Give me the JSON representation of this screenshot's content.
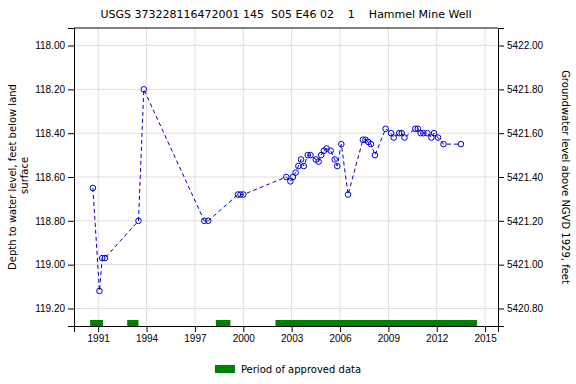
{
  "chart_data": {
    "type": "line",
    "title": "USGS 373228116472001 145  S05 E46 02    1    Hammel Mine Well",
    "ylabel": "Depth to water level, feet below land\n surface",
    "y2label": "Groundwater level above NGVD 1929, feet",
    "xlim": [
      1989.5,
      2015.8
    ],
    "xticks": [
      1991,
      1994,
      1997,
      2000,
      2003,
      2006,
      2009,
      2012,
      2015
    ],
    "ylim": [
      119.28,
      117.92
    ],
    "yticks": [
      {
        "value": 118.0,
        "label": "118.00"
      },
      {
        "value": 118.2,
        "label": "118.20"
      },
      {
        "value": 118.4,
        "label": "118.40"
      },
      {
        "value": 118.6,
        "label": "118.60"
      },
      {
        "value": 118.8,
        "label": "118.80"
      },
      {
        "value": 119.0,
        "label": "119.00"
      },
      {
        "value": 119.2,
        "label": "119.20"
      }
    ],
    "y2lim": [
      5420.72,
      5422.08
    ],
    "y2ticks": [
      {
        "value": 5422.0,
        "label": "5422.00"
      },
      {
        "value": 5421.8,
        "label": "5421.80"
      },
      {
        "value": 5421.6,
        "label": "5421.60"
      },
      {
        "value": 5421.4,
        "label": "5421.40"
      },
      {
        "value": 5421.2,
        "label": "5421.20"
      },
      {
        "value": 5421.0,
        "label": "5421.00"
      },
      {
        "value": 5420.8,
        "label": "5420.80"
      }
    ],
    "grid": true,
    "legend": "bottom",
    "series": [
      {
        "type": "line",
        "color": "#0000cc",
        "marker": "circle",
        "line_style": "dashed",
        "x": [
          1990.67,
          1991.08,
          1991.25,
          1991.42,
          1993.5,
          1993.83,
          1997.58,
          1997.83,
          1999.67,
          1999.83,
          2000.0,
          2002.67,
          2002.92,
          2003.08,
          2003.25,
          2003.42,
          2003.58,
          2003.75,
          2004.0,
          2004.17,
          2004.5,
          2004.67,
          2004.83,
          2005.0,
          2005.17,
          2005.42,
          2005.67,
          2005.83,
          2006.08,
          2006.5,
          2007.42,
          2007.58,
          2007.75,
          2007.92,
          2008.17,
          2008.83,
          2009.17,
          2009.33,
          2009.67,
          2009.83,
          2010.0,
          2010.67,
          2010.83,
          2011.0,
          2011.17,
          2011.42,
          2011.67,
          2011.83,
          2012.08,
          2012.42,
          2013.5
        ],
        "values": [
          118.65,
          119.12,
          118.97,
          118.97,
          118.8,
          118.2,
          118.8,
          118.8,
          118.68,
          118.68,
          118.68,
          118.6,
          118.62,
          118.6,
          118.58,
          118.55,
          118.52,
          118.55,
          118.5,
          118.5,
          118.52,
          118.53,
          118.5,
          118.48,
          118.47,
          118.48,
          118.52,
          118.55,
          118.45,
          118.68,
          118.43,
          118.43,
          118.44,
          118.45,
          118.5,
          118.38,
          118.4,
          118.42,
          118.4,
          118.4,
          118.42,
          118.38,
          118.38,
          118.4,
          118.4,
          118.4,
          118.42,
          118.4,
          118.42,
          118.45,
          118.45
        ]
      },
      {
        "type": "span",
        "name": "Period of approved data",
        "color": "#008000",
        "values": [
          [
            1990.5,
            1991.3
          ],
          [
            1992.8,
            1993.5
          ],
          [
            1998.3,
            1999.2
          ],
          [
            2002.0,
            2014.5
          ]
        ]
      }
    ]
  }
}
